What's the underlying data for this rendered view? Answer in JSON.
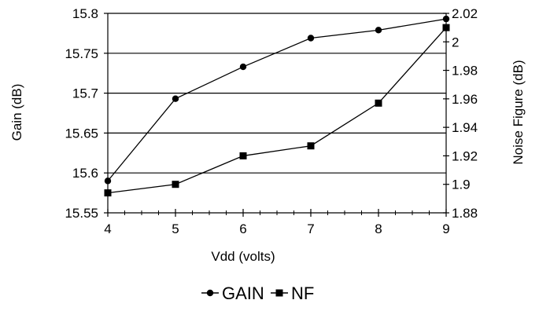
{
  "chart_data": {
    "type": "line",
    "x": [
      4,
      5,
      6,
      7,
      8,
      9
    ],
    "xlabel": "Vdd (volts)",
    "xlim": [
      4,
      9
    ],
    "x_ticks": [
      "4",
      "5",
      "6",
      "7",
      "8",
      "9"
    ],
    "y_left": {
      "label": "Gain (dB)",
      "lim": [
        15.55,
        15.8
      ],
      "ticks": [
        "15.55",
        "15.6",
        "15.65",
        "15.7",
        "15.75",
        "15.8"
      ],
      "tick_values": [
        15.55,
        15.6,
        15.65,
        15.7,
        15.75,
        15.8
      ]
    },
    "y_right": {
      "label": "Noise Figure (dB)",
      "lim": [
        1.88,
        2.02
      ],
      "ticks": [
        "1.88",
        "1.9",
        "1.92",
        "1.94",
        "1.96",
        "1.98",
        "2",
        "2.02"
      ],
      "tick_values": [
        1.88,
        1.9,
        1.92,
        1.94,
        1.96,
        1.98,
        2.0,
        2.02
      ]
    },
    "grid": "horizontal",
    "legend_position": "bottom",
    "series": [
      {
        "name": "GAIN",
        "axis": "left",
        "marker": "circle",
        "values": [
          15.59,
          15.693,
          15.733,
          15.769,
          15.779,
          15.793
        ]
      },
      {
        "name": "NF",
        "axis": "right",
        "marker": "square",
        "values": [
          1.894,
          1.9,
          1.92,
          1.927,
          1.957,
          2.01
        ]
      }
    ],
    "colors": {
      "line": "#000000",
      "background": "#ffffff"
    }
  }
}
